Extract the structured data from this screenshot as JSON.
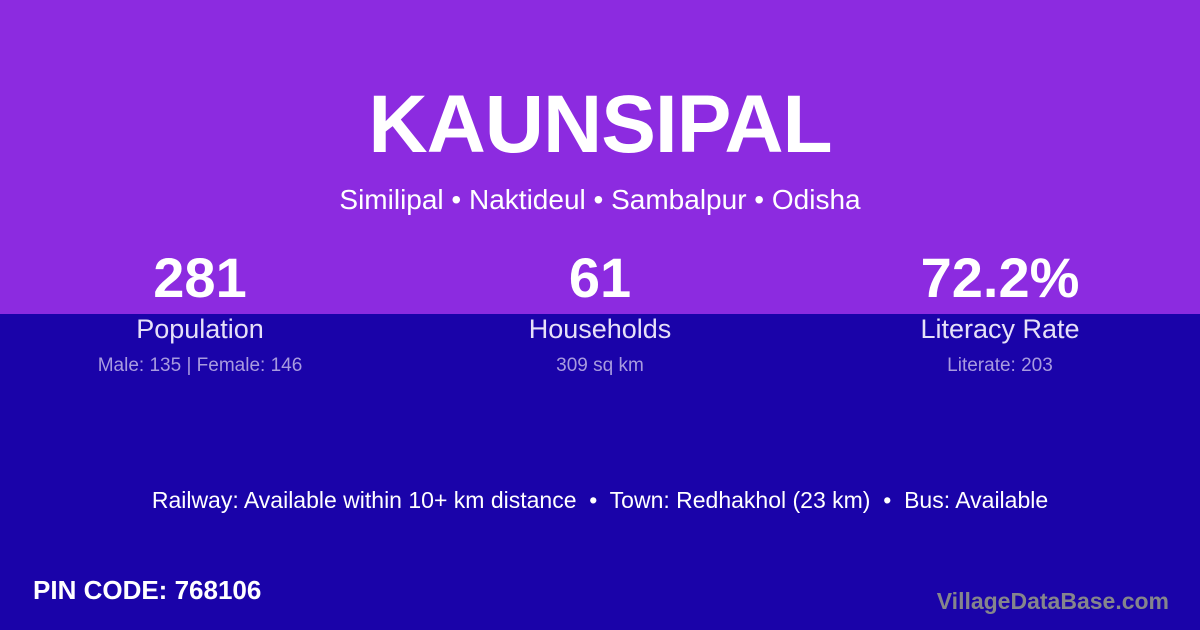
{
  "theme": {
    "purple": "#8C2BE0",
    "blue": "#1A03A9",
    "label_color": "#E6E1F8",
    "muted_color": "#A89BDF",
    "watermark_color": "#85858C"
  },
  "header": {
    "title": "KAUNSIPAL",
    "subtitle": "Similipal • Naktideul • Sambalpur • Odisha"
  },
  "stats": [
    {
      "value": "281",
      "label": "Population",
      "detail": "Male: 135 | Female: 146"
    },
    {
      "value": "61",
      "label": "Households",
      "detail": "309 sq km"
    },
    {
      "value": "72.2%",
      "label": "Literacy Rate",
      "detail": "Literate: 203"
    }
  ],
  "info_line": "Railway: Available within 10+ km distance  •  Town: Redhakhol (23 km)  •  Bus: Available",
  "footer": {
    "pin_code": "PIN CODE: 768106",
    "watermark": "VillageDataBase.com"
  }
}
